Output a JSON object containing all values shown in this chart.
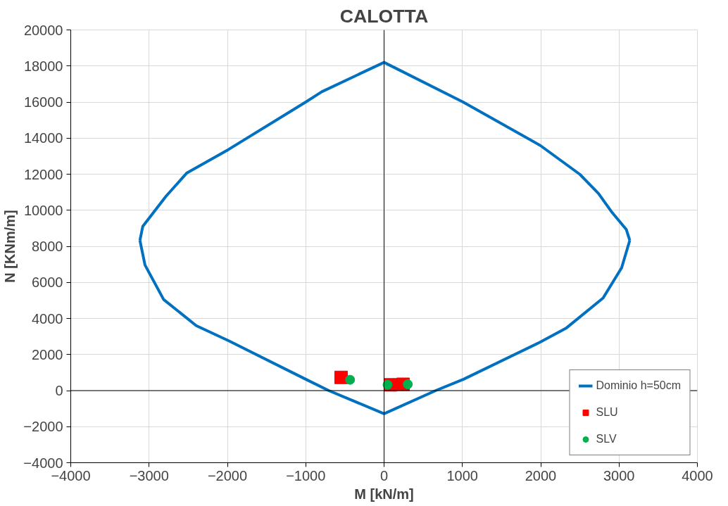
{
  "chart_data": {
    "type": "line",
    "title": "CALOTTA",
    "xlabel": "M [kN/m]",
    "ylabel": "N [KNm/m]",
    "xlim": [
      -4000,
      4000
    ],
    "ylim": [
      -4000,
      20000
    ],
    "xticks": [
      -4000,
      -3000,
      -2000,
      -1000,
      0,
      1000,
      2000,
      3000,
      4000
    ],
    "yticks": [
      -4000,
      -2000,
      0,
      2000,
      4000,
      6000,
      8000,
      10000,
      12000,
      14000,
      16000,
      18000,
      20000
    ],
    "grid": true,
    "legend": "bottom right",
    "series": [
      {
        "name": "Dominio h=50cm",
        "color": "#0070c0",
        "marker": "none",
        "line_style": "solid",
        "x": [
          -3117,
          -3081,
          -2785,
          -2517,
          -1986,
          -1000,
          -795,
          0,
          1009,
          1995,
          2500,
          2737,
          2914,
          3092,
          3137,
          null,
          -3117,
          -3052,
          -2814,
          -2398,
          -1983,
          -1000,
          -706,
          0,
          659,
          1015,
          1995,
          2321,
          2796,
          3033,
          3137
        ],
        "values": [
          8330,
          9100,
          10770,
          12070,
          13370,
          16000,
          16570,
          18200,
          16000,
          13590,
          11990,
          10930,
          9860,
          8940,
          8330,
          null,
          8330,
          6960,
          5050,
          3600,
          2760,
          630,
          0,
          -1280,
          0,
          630,
          2690,
          3450,
          5130,
          6810,
          8330
        ]
      },
      {
        "name": "SLU",
        "type": "scatter",
        "color": "#ff0000",
        "marker": "square",
        "x": [
          -549,
          80,
          243
        ],
        "values": [
          730,
          320,
          350
        ]
      },
      {
        "name": "SLV",
        "type": "scatter",
        "color": "#00b050",
        "marker": "circle",
        "x": [
          -434,
          45,
          303
        ],
        "values": [
          600,
          320,
          350
        ]
      }
    ]
  }
}
